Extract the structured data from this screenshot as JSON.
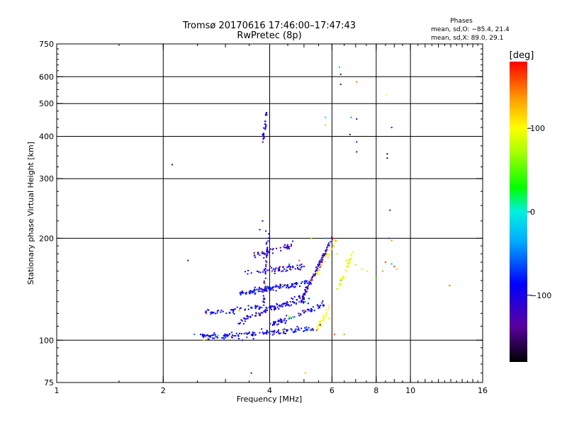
{
  "chart_data": {
    "type": "scatter",
    "title": "Tromsø 20170616 17:46:00–17:47:43",
    "subtitle": "RwPretec (8p)",
    "xlabel": "Frequency [MHz]",
    "ylabel": "Stationary phase Virtual Height [km]",
    "xscale": "log",
    "yscale": "log",
    "xlim": [
      1,
      16
    ],
    "ylim": [
      75,
      750
    ],
    "xticks": [
      1,
      2,
      4,
      6,
      8,
      10,
      16
    ],
    "xtick_labels": [
      "1",
      "2",
      "4",
      "6",
      "8",
      "10",
      "16"
    ],
    "yticks": [
      75,
      100,
      200,
      300,
      400,
      500,
      600,
      750
    ],
    "ytick_labels": [
      "75",
      "100",
      "200",
      "300",
      "400",
      "500",
      "600",
      "750"
    ],
    "xgrid": [
      2,
      4,
      6,
      8,
      10
    ],
    "ygrid": [
      100,
      200,
      300,
      400,
      500,
      600
    ],
    "phases_box": {
      "header": "Phases",
      "line_o": "mean, sd,O: −85.4, 21.4",
      "line_x": "mean, sd,X: 89.0, 29.1"
    },
    "colorbar": {
      "label": "[deg]",
      "min": -180,
      "max": 180,
      "ticks": [
        100,
        0,
        -100
      ],
      "tick_labels": [
        "100",
        "0",
        "−100"
      ]
    },
    "points": [
      [
        2.12,
        330,
        -100
      ],
      [
        2.35,
        172,
        -110
      ],
      [
        2.45,
        104,
        -60
      ],
      [
        3.55,
        80,
        -150
      ],
      [
        5.05,
        80,
        120
      ],
      [
        6.3,
        640,
        -20
      ],
      [
        6.35,
        610,
        -120
      ],
      [
        6.35,
        570,
        -120
      ],
      [
        7.05,
        580,
        150
      ],
      [
        8.55,
        530,
        100
      ],
      [
        5.75,
        455,
        -10
      ],
      [
        5.75,
        432,
        120
      ],
      [
        6.8,
        455,
        -40
      ],
      [
        7.05,
        450,
        -110
      ],
      [
        6.75,
        405,
        -140
      ],
      [
        7.05,
        385,
        -130
      ],
      [
        7.05,
        360,
        -100
      ],
      [
        8.6,
        355,
        -160
      ],
      [
        8.6,
        345,
        -170
      ],
      [
        8.85,
        425,
        -80
      ],
      [
        8.75,
        242,
        -130
      ],
      [
        8.7,
        200,
        -60
      ],
      [
        8.85,
        197,
        140
      ],
      [
        5.25,
        200,
        60
      ],
      [
        5.8,
        200,
        -40
      ],
      [
        6.05,
        200,
        170
      ],
      [
        6.2,
        180,
        80
      ],
      [
        6.6,
        172,
        70
      ],
      [
        7.0,
        167,
        70
      ],
      [
        7.3,
        162,
        80
      ],
      [
        7.55,
        160,
        80
      ],
      [
        8.0,
        152,
        40
      ],
      [
        8.35,
        160,
        140
      ],
      [
        8.5,
        170,
        160
      ],
      [
        8.85,
        168,
        -30
      ],
      [
        9.0,
        165,
        170
      ],
      [
        9.15,
        162,
        120
      ],
      [
        12.9,
        145,
        150
      ],
      [
        5.6,
        110,
        90
      ],
      [
        6.1,
        104,
        160
      ],
      [
        6.5,
        104,
        140
      ],
      [
        5.9,
        116,
        80
      ],
      [
        4.65,
        196,
        -80
      ],
      [
        4.55,
        168,
        10
      ],
      [
        4.85,
        172,
        160
      ],
      [
        3.75,
        212,
        -100
      ],
      [
        3.85,
        175,
        -110
      ],
      [
        3.9,
        210,
        -120
      ],
      [
        3.82,
        225,
        -110
      ],
      [
        3.35,
        100,
        -100
      ],
      [
        3.45,
        102,
        -130
      ],
      [
        3.6,
        101,
        -90
      ]
    ],
    "clusters": [
      {
        "f0": 3.82,
        "f1": 3.92,
        "h0": 385,
        "h1": 465,
        "n": 26,
        "phase": -100,
        "spread": 25,
        "line": "linear"
      },
      {
        "f0": 2.55,
        "f1": 5.4,
        "h0": 102,
        "h1": 108,
        "n": 150,
        "phase": -90,
        "spread": 35,
        "line": "linear"
      },
      {
        "f0": 2.6,
        "f1": 5.2,
        "h0": 120,
        "h1": 130,
        "n": 90,
        "phase": -90,
        "spread": 35,
        "line": "linear"
      },
      {
        "f0": 3.25,
        "f1": 5.0,
        "h0": 113,
        "h1": 135,
        "n": 80,
        "phase": -100,
        "spread": 30,
        "line": "linear"
      },
      {
        "f0": 4.0,
        "f1": 5.7,
        "h0": 110,
        "h1": 128,
        "n": 70,
        "phase": -95,
        "spread": 35,
        "line": "linear"
      },
      {
        "f0": 3.3,
        "f1": 5.2,
        "h0": 138,
        "h1": 148,
        "n": 120,
        "phase": -90,
        "spread": 35,
        "line": "linear"
      },
      {
        "f0": 3.4,
        "f1": 5.0,
        "h0": 158,
        "h1": 165,
        "n": 60,
        "phase": -110,
        "spread": 35,
        "line": "linear"
      },
      {
        "f0": 3.6,
        "f1": 4.6,
        "h0": 178,
        "h1": 190,
        "n": 45,
        "phase": -110,
        "spread": 30,
        "line": "linear"
      },
      {
        "f0": 3.85,
        "f1": 3.95,
        "h0": 128,
        "h1": 205,
        "n": 45,
        "phase": -100,
        "spread": 25,
        "line": "linear"
      },
      {
        "f0": 4.9,
        "f1": 6.0,
        "h0": 130,
        "h1": 200,
        "n": 90,
        "phase": -120,
        "spread": 60,
        "line": "linear"
      },
      {
        "f0": 5.4,
        "f1": 5.9,
        "h0": 106,
        "h1": 125,
        "n": 30,
        "phase": 100,
        "spread": 15,
        "line": "linear"
      },
      {
        "f0": 6.2,
        "f1": 6.85,
        "h0": 140,
        "h1": 180,
        "n": 35,
        "phase": 95,
        "spread": 15,
        "line": "linear"
      },
      {
        "f0": 5.4,
        "f1": 6.2,
        "h0": 155,
        "h1": 200,
        "n": 22,
        "phase": 110,
        "spread": 30,
        "line": "linear"
      }
    ]
  }
}
